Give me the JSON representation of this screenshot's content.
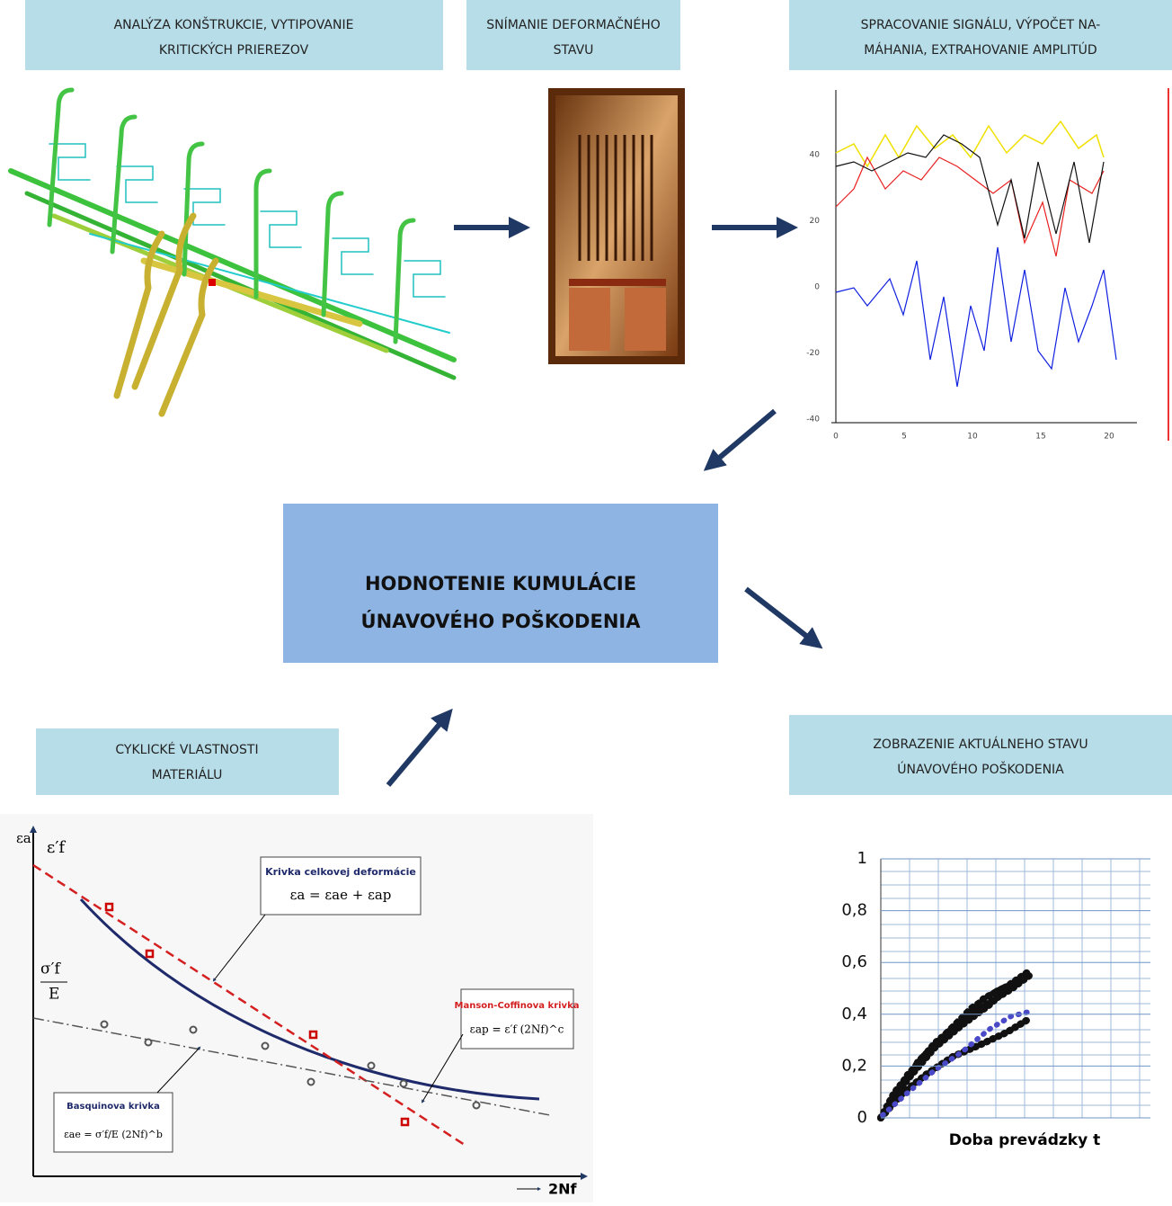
{
  "steps": [
    {
      "lines": [
        "ANALÝZA KONŠTRUKCIE, VYTIPOVANIE",
        "KRITICKÝCH PRIEREZOV"
      ]
    },
    {
      "lines": [
        "SNÍMANIE DEFORMAČNÉHO",
        "STAVU"
      ]
    },
    {
      "lines": [
        "SPRACOVANIE SIGNÁLU, VÝPOČET NA-",
        "MÁHANIA, EXTRAHOVANIE AMPLITÚD"
      ]
    },
    {
      "lines": [
        "CYKLICKÉ VLASTNOSTI",
        "MATERIÁLU"
      ]
    },
    {
      "lines": [
        "ZOBRAZENIE AKTUÁLNEHO STAVU",
        "ÚNAVOVÉHO POŠKODENIA"
      ]
    }
  ],
  "center": {
    "lines": [
      "HODNOTENIE KUMULÁCIE",
      "ÚNAVOVÉHO POŠKODENIA"
    ]
  },
  "signal_plot": {
    "xticks": [
      0,
      5,
      10,
      15,
      20
    ],
    "yticks": [
      40,
      20,
      0,
      -20,
      -40
    ]
  },
  "strain_life": {
    "y_label": "εa",
    "eps_f": "ε′f",
    "sigma_f": "σ′f",
    "E": "E",
    "total_title": "Krivka celkovej deformácie",
    "total_formula": "εa = εae + εap",
    "mc_title": "Manson-Coffinova krivka",
    "mc_formula": "εap = ε′f (2Nf)^c",
    "basq_title": "Basquinova krivka",
    "basq_formula": "εae = σ′f/E (2Nf)^b",
    "x_label": "2Nf"
  },
  "damage_chart": {
    "yticks": [
      {
        "value": 0,
        "label": "0"
      },
      {
        "value": 0.2,
        "label": "0,2"
      },
      {
        "value": 0.4,
        "label": "0,4"
      },
      {
        "value": 0.6,
        "label": "0,6"
      },
      {
        "value": 0.8,
        "label": "0,8"
      },
      1
    ],
    "x_label": "Doba prevádzky  t"
  }
}
